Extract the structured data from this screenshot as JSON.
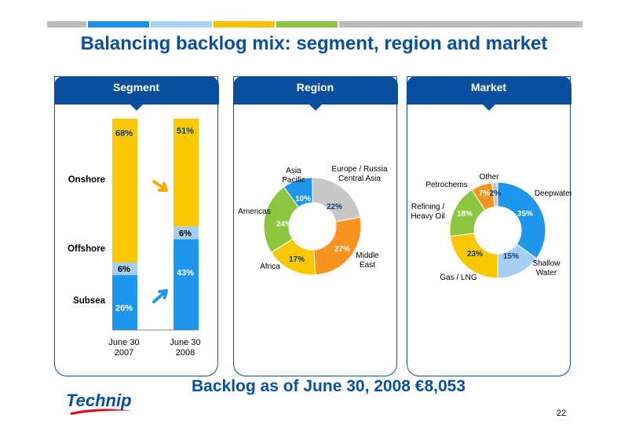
{
  "title": "Balancing backlog mix: segment, region and market",
  "top_bar_colors": [
    "#bbbbbb",
    "#1e90e6",
    "#a9d4f5",
    "#f5c400",
    "#8cc640",
    "#bbbbbb"
  ],
  "colors": {
    "brand_blue": "#0a4f9e",
    "onshore": "#fac800",
    "offshore": "#a6cdf2",
    "subsea": "#1e96eb",
    "arrow_orange": "#f5a800",
    "arrow_blue": "#1e96eb"
  },
  "panels": {
    "segment": {
      "header": "Segment",
      "row_labels": [
        "Onshore",
        "Offshore",
        "Subsea"
      ]
    },
    "region": {
      "header": "Region"
    },
    "market": {
      "header": "Market"
    }
  },
  "chart_data": [
    {
      "type": "bar",
      "stacked": true,
      "categories": [
        "June 30\n2007",
        "June 30\n2008"
      ],
      "series": [
        {
          "name": "Subsea",
          "values": [
            26,
            43
          ],
          "labels": [
            "26%",
            "43%"
          ],
          "color": "#1e96eb"
        },
        {
          "name": "Offshore",
          "values": [
            6,
            6
          ],
          "labels": [
            "6%",
            "6%"
          ],
          "color": "#a6cdf2"
        },
        {
          "name": "Onshore",
          "values": [
            68,
            51
          ],
          "labels": [
            "68%",
            "51%"
          ],
          "color": "#fac800"
        }
      ],
      "ylim": [
        0,
        100
      ]
    },
    {
      "type": "pie",
      "donut": true,
      "slices": [
        {
          "label": "Europe / Russia\nCentral Asia",
          "value": 22,
          "pct_label": "22%",
          "color": "#c8c8c8"
        },
        {
          "label": "Middle\nEast",
          "value": 27,
          "pct_label": "27%",
          "color": "#f7931e"
        },
        {
          "label": "Africa",
          "value": 17,
          "pct_label": "17%",
          "color": "#fac800"
        },
        {
          "label": "Americas",
          "value": 24,
          "pct_label": "24%",
          "color": "#8cc63f"
        },
        {
          "label": "Asia\nPacific",
          "value": 10,
          "pct_label": "10%",
          "color": "#1e96eb"
        }
      ]
    },
    {
      "type": "pie",
      "donut": true,
      "slices": [
        {
          "label": "Deepwater",
          "value": 35,
          "pct_label": "35%",
          "color": "#1e96eb"
        },
        {
          "label": "Shallow\nWater",
          "value": 15,
          "pct_label": "15%",
          "color": "#a6cdf2"
        },
        {
          "label": "Gas / LNG",
          "value": 23,
          "pct_label": "23%",
          "color": "#fac800"
        },
        {
          "label": "Refining /\nHeavy Oil",
          "value": 18,
          "pct_label": "18%",
          "color": "#8cc63f"
        },
        {
          "label": "Petrochems",
          "value": 7,
          "pct_label": "7%",
          "color": "#f7931e"
        },
        {
          "label": "Other",
          "value": 2,
          "pct_label": "2%",
          "color": "#c8c8c8"
        }
      ]
    }
  ],
  "footer": {
    "backlog_text": "Backlog as of June 30, 2008  €8,053",
    "page_number": "22",
    "logo_text": "Technip",
    "logo_color": "#0a4f9e",
    "logo_accent": "#e2001a"
  }
}
